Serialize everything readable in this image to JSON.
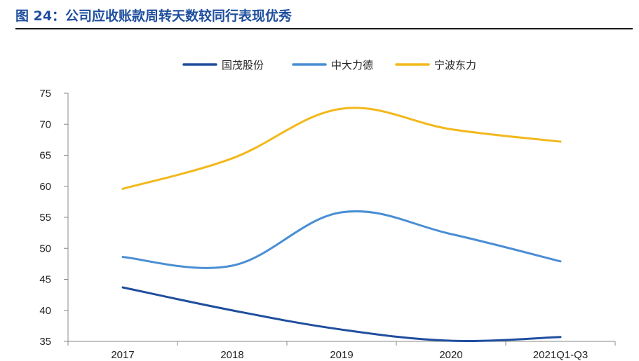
{
  "figure": {
    "title": "图 24：公司应收账款周转天数较同行表现优秀"
  },
  "chart_data": {
    "type": "line",
    "categories": [
      "2017",
      "2018",
      "2019",
      "2020",
      "2021Q1-Q3"
    ],
    "ylim": [
      35,
      75
    ],
    "yticks": [
      "35",
      "40",
      "45",
      "50",
      "55",
      "60",
      "65",
      "70",
      "75"
    ],
    "legend_position": "top",
    "grid": false,
    "smooth": true,
    "series": [
      {
        "name": "国茂股份",
        "color": "#1f4e9e",
        "values": [
          43.7,
          40.0,
          36.9,
          35.1,
          35.7
        ]
      },
      {
        "name": "中大力德",
        "color": "#4a8ed4",
        "values": [
          48.6,
          47.2,
          55.8,
          52.3,
          47.9
        ]
      },
      {
        "name": "宁波东力",
        "color": "#f2b81c",
        "values": [
          59.6,
          64.5,
          72.5,
          69.2,
          67.2
        ]
      }
    ]
  }
}
